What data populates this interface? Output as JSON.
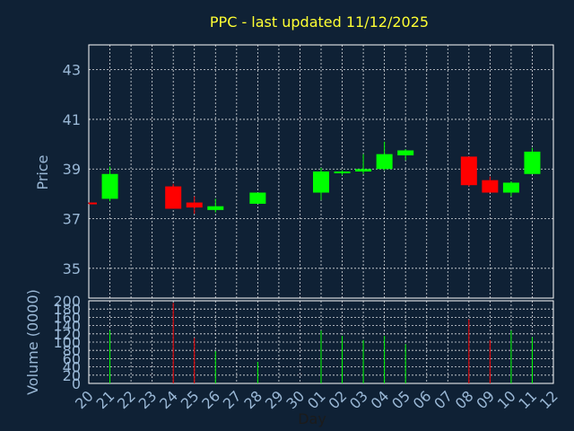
{
  "chart_data": {
    "type": "candlestick",
    "title": "PPC - last updated 11/12/2025",
    "xlabel": "Day",
    "ylabel_price": "Price",
    "ylabel_volume": "Volume (0000)",
    "price_ylim": [
      33.8,
      44.0
    ],
    "price_ticks": [
      "35",
      "37",
      "39",
      "41",
      "43"
    ],
    "volume_ylim": [
      0,
      200
    ],
    "volume_ticks": [
      "0",
      "20",
      "40",
      "60",
      "80",
      "100",
      "120",
      "140",
      "160",
      "180",
      "200"
    ],
    "x_tick_labels": [
      "20",
      "21",
      "22",
      "23",
      "24",
      "25",
      "26",
      "27",
      "28",
      "29",
      "30",
      "01",
      "02",
      "03",
      "04",
      "05",
      "06",
      "07",
      "08",
      "09",
      "10",
      "11",
      "12"
    ],
    "colors": {
      "up": "#00ff00",
      "down": "#ff0000",
      "title": "#ffff33",
      "axis_text": "#9ab8d6",
      "background": "#0f2135"
    },
    "candles": [
      {
        "day": "20",
        "open": 37.65,
        "high": 37.65,
        "low": 37.6,
        "close": 37.6,
        "volume": 0
      },
      {
        "day": "21",
        "open": 37.8,
        "high": 39.1,
        "low": 37.7,
        "close": 38.8,
        "volume": 128
      },
      {
        "day": "24",
        "open": 38.3,
        "high": 38.4,
        "low": 37.4,
        "close": 37.4,
        "volume": 195
      },
      {
        "day": "25",
        "open": 37.65,
        "high": 37.9,
        "low": 37.2,
        "close": 37.45,
        "volume": 110
      },
      {
        "day": "26",
        "open": 37.35,
        "high": 37.8,
        "low": 37.25,
        "close": 37.5,
        "volume": 78
      },
      {
        "day": "28",
        "open": 37.6,
        "high": 38.05,
        "low": 37.6,
        "close": 38.05,
        "volume": 52
      },
      {
        "day": "01",
        "open": 38.05,
        "high": 39.05,
        "low": 37.75,
        "close": 38.9,
        "volume": 128
      },
      {
        "day": "02",
        "open": 38.85,
        "high": 38.95,
        "low": 38.75,
        "close": 38.9,
        "volume": 115
      },
      {
        "day": "03",
        "open": 38.9,
        "high": 39.6,
        "low": 38.8,
        "close": 39.0,
        "volume": 105
      },
      {
        "day": "04",
        "open": 39.0,
        "high": 40.1,
        "low": 38.95,
        "close": 39.6,
        "volume": 115
      },
      {
        "day": "05",
        "open": 39.55,
        "high": 39.8,
        "low": 39.35,
        "close": 39.75,
        "volume": 95
      },
      {
        "day": "08",
        "open": 39.5,
        "high": 39.5,
        "low": 38.3,
        "close": 38.35,
        "volume": 155
      },
      {
        "day": "09",
        "open": 38.55,
        "high": 38.7,
        "low": 38.05,
        "close": 38.05,
        "volume": 105
      },
      {
        "day": "10",
        "open": 38.05,
        "high": 38.5,
        "low": 37.9,
        "close": 38.45,
        "volume": 128
      },
      {
        "day": "11",
        "open": 38.8,
        "high": 39.85,
        "low": 38.8,
        "close": 39.7,
        "volume": 112
      }
    ]
  }
}
